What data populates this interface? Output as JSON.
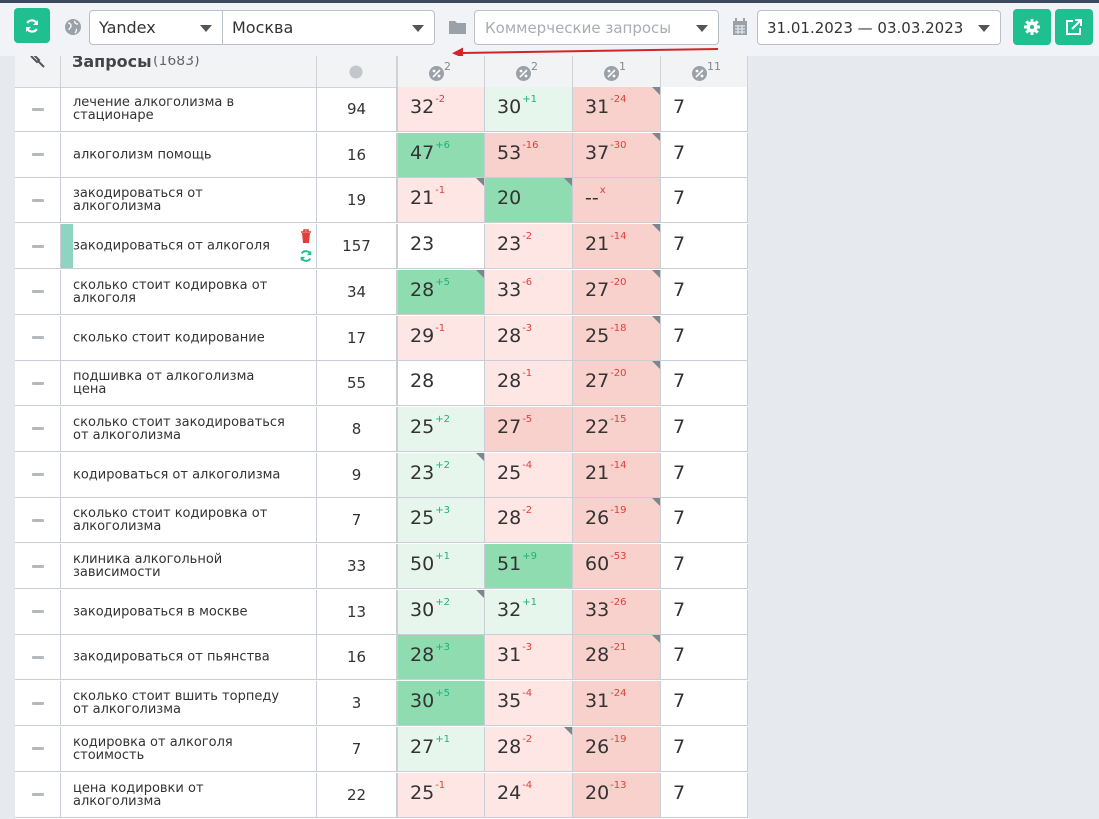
{
  "toolbar": {
    "search_engine": "Yandex",
    "region": "Москва",
    "group_placeholder": "Коммерческие запросы",
    "date_range": "31.01.2023 — 03.03.2023"
  },
  "table_header": {
    "title": "Запросы",
    "count": "(1683)",
    "col_counts": [
      "2",
      "2",
      "1",
      "11"
    ]
  },
  "colors": {
    "accent": "#1fbf8f",
    "green_strong": "#8fdcb0",
    "green_light": "#e6f6ec",
    "red_light": "#fde6e4",
    "red_strong": "#f8d0cc"
  },
  "rows": [
    {
      "kw": "лечение алкоголизма в стационаре",
      "freq": "94",
      "cells": [
        {
          "v": "32",
          "d": "-2",
          "c": "red_light"
        },
        {
          "v": "30",
          "d": "+1",
          "c": "green_light"
        },
        {
          "v": "31",
          "d": "-24",
          "c": "red_strong",
          "k": 1
        },
        {
          "v": "7",
          "d": "",
          "c": "none"
        }
      ]
    },
    {
      "kw": "алкоголизм помощь",
      "freq": "16",
      "cells": [
        {
          "v": "47",
          "d": "+6",
          "c": "green_strong"
        },
        {
          "v": "53",
          "d": "-16",
          "c": "red_strong"
        },
        {
          "v": "37",
          "d": "-30",
          "c": "red_strong",
          "k": 1
        },
        {
          "v": "7",
          "d": "",
          "c": "none"
        }
      ]
    },
    {
      "kw": "закодироваться от алкоголизма",
      "freq": "19",
      "cells": [
        {
          "v": "21",
          "d": "-1",
          "c": "red_light",
          "k": 1
        },
        {
          "v": "20",
          "d": "",
          "c": "green_strong",
          "k": 1
        },
        {
          "v": "--",
          "d": "x",
          "c": "red_strong"
        },
        {
          "v": "7",
          "d": "",
          "c": "none"
        }
      ]
    },
    {
      "kw": "закодироваться от алкоголя",
      "freq": "157",
      "sel": 1,
      "cells": [
        {
          "v": "23",
          "d": "",
          "c": "none"
        },
        {
          "v": "23",
          "d": "-2",
          "c": "red_light"
        },
        {
          "v": "21",
          "d": "-14",
          "c": "red_strong",
          "k": 1
        },
        {
          "v": "7",
          "d": "",
          "c": "none"
        }
      ]
    },
    {
      "kw": "сколько стоит кодировка от алкоголя",
      "freq": "34",
      "cells": [
        {
          "v": "28",
          "d": "+5",
          "c": "green_strong",
          "k": 1
        },
        {
          "v": "33",
          "d": "-6",
          "c": "red_light"
        },
        {
          "v": "27",
          "d": "-20",
          "c": "red_strong",
          "k": 1
        },
        {
          "v": "7",
          "d": "",
          "c": "none"
        }
      ]
    },
    {
      "kw": "сколько стоит кодирование",
      "freq": "17",
      "cells": [
        {
          "v": "29",
          "d": "-1",
          "c": "red_light"
        },
        {
          "v": "28",
          "d": "-3",
          "c": "red_light"
        },
        {
          "v": "25",
          "d": "-18",
          "c": "red_strong",
          "k": 1
        },
        {
          "v": "7",
          "d": "",
          "c": "none"
        }
      ]
    },
    {
      "kw": "подшивка от алкоголизма цена",
      "freq": "55",
      "cells": [
        {
          "v": "28",
          "d": "",
          "c": "none"
        },
        {
          "v": "28",
          "d": "-1",
          "c": "red_light"
        },
        {
          "v": "27",
          "d": "-20",
          "c": "red_strong",
          "k": 1
        },
        {
          "v": "7",
          "d": "",
          "c": "none"
        }
      ]
    },
    {
      "kw": "сколько стоит закодироваться от алкоголизма",
      "freq": "8",
      "cells": [
        {
          "v": "25",
          "d": "+2",
          "c": "green_light"
        },
        {
          "v": "27",
          "d": "-5",
          "c": "red_strong"
        },
        {
          "v": "22",
          "d": "-15",
          "c": "red_strong"
        },
        {
          "v": "7",
          "d": "",
          "c": "none"
        }
      ]
    },
    {
      "kw": "кодироваться от алкоголизма",
      "freq": "9",
      "cells": [
        {
          "v": "23",
          "d": "+2",
          "c": "green_light",
          "k": 1
        },
        {
          "v": "25",
          "d": "-4",
          "c": "red_light"
        },
        {
          "v": "21",
          "d": "-14",
          "c": "red_strong"
        },
        {
          "v": "7",
          "d": "",
          "c": "none"
        }
      ]
    },
    {
      "kw": "сколько стоит кодировка от алкоголизма",
      "freq": "7",
      "cells": [
        {
          "v": "25",
          "d": "+3",
          "c": "green_light"
        },
        {
          "v": "28",
          "d": "-2",
          "c": "red_light"
        },
        {
          "v": "26",
          "d": "-19",
          "c": "red_strong",
          "k": 1
        },
        {
          "v": "7",
          "d": "",
          "c": "none"
        }
      ]
    },
    {
      "kw": "клиника алкогольной зависимости",
      "freq": "33",
      "cells": [
        {
          "v": "50",
          "d": "+1",
          "c": "green_light"
        },
        {
          "v": "51",
          "d": "+9",
          "c": "green_strong"
        },
        {
          "v": "60",
          "d": "-53",
          "c": "red_strong"
        },
        {
          "v": "7",
          "d": "",
          "c": "none"
        }
      ]
    },
    {
      "kw": "закодироваться в москве",
      "freq": "13",
      "cells": [
        {
          "v": "30",
          "d": "+2",
          "c": "green_light",
          "k": 1
        },
        {
          "v": "32",
          "d": "+1",
          "c": "green_light"
        },
        {
          "v": "33",
          "d": "-26",
          "c": "red_strong"
        },
        {
          "v": "7",
          "d": "",
          "c": "none"
        }
      ]
    },
    {
      "kw": "закодироваться от пьянства",
      "freq": "16",
      "cells": [
        {
          "v": "28",
          "d": "+3",
          "c": "green_strong"
        },
        {
          "v": "31",
          "d": "-3",
          "c": "red_light"
        },
        {
          "v": "28",
          "d": "-21",
          "c": "red_strong",
          "k": 1
        },
        {
          "v": "7",
          "d": "",
          "c": "none"
        }
      ]
    },
    {
      "kw": "сколько стоит вшить торпеду от алкоголизма",
      "freq": "3",
      "cells": [
        {
          "v": "30",
          "d": "+5",
          "c": "green_strong"
        },
        {
          "v": "35",
          "d": "-4",
          "c": "red_light"
        },
        {
          "v": "31",
          "d": "-24",
          "c": "red_strong"
        },
        {
          "v": "7",
          "d": "",
          "c": "none"
        }
      ]
    },
    {
      "kw": "кодировка от алкоголя стоимость",
      "freq": "7",
      "cells": [
        {
          "v": "27",
          "d": "+1",
          "c": "green_light"
        },
        {
          "v": "28",
          "d": "-2",
          "c": "red_light",
          "k": 1
        },
        {
          "v": "26",
          "d": "-19",
          "c": "red_strong"
        },
        {
          "v": "7",
          "d": "",
          "c": "none"
        }
      ]
    },
    {
      "kw": "цена кодировки от алкоголизма",
      "freq": "22",
      "cells": [
        {
          "v": "25",
          "d": "-1",
          "c": "red_light"
        },
        {
          "v": "24",
          "d": "-4",
          "c": "red_light"
        },
        {
          "v": "20",
          "d": "-13",
          "c": "red_strong"
        },
        {
          "v": "7",
          "d": "",
          "c": "none"
        }
      ]
    }
  ]
}
